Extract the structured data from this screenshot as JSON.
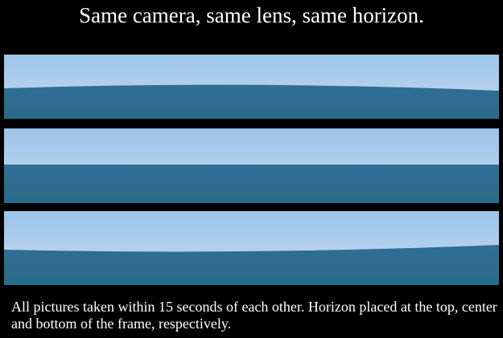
{
  "header": {
    "title": "Same camera, same lens, same horizon."
  },
  "caption": {
    "text": "All pictures taken within 15 seconds of each other. Horizon placed at the top, center and bottom of the frame, respectively."
  }
}
